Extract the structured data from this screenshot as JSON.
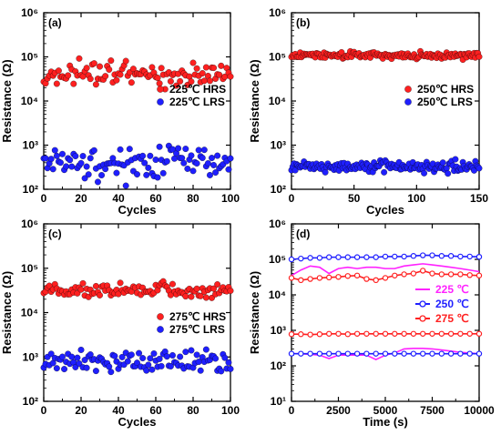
{
  "colors": {
    "red": "#ff2020",
    "blue": "#1f1fff",
    "magenta": "#ff22ff"
  },
  "chart_data": [
    {
      "panel": "(a)",
      "type": "scatter",
      "xlabel": "Cycles",
      "ylabel": "Resistance (Ω)",
      "xlim": [
        0,
        100
      ],
      "xticks": [
        0,
        20,
        40,
        60,
        80,
        100
      ],
      "ylim_log10": [
        2,
        6
      ],
      "ytick_labels": [
        "10²",
        "10³",
        "10⁴",
        "10⁵",
        "10⁶"
      ],
      "series": [
        {
          "name": "225℃ HRS",
          "color": "red",
          "center": 40000,
          "spread": 0.13,
          "n": 100
        },
        {
          "name": "225℃ LRS",
          "color": "blue",
          "center": 420,
          "spread": 0.22,
          "n": 100
        }
      ]
    },
    {
      "panel": "(b)",
      "type": "scatter",
      "xlabel": "Cycles",
      "ylabel": "Resistance (Ω)",
      "xlim": [
        0,
        150
      ],
      "xticks": [
        0,
        50,
        100,
        150
      ],
      "ylim_log10": [
        2,
        6
      ],
      "ytick_labels": [
        "10²",
        "10³",
        "10⁴",
        "10⁵",
        "10⁶"
      ],
      "series": [
        {
          "name": "250℃ HRS",
          "color": "red",
          "center": 110000,
          "spread": 0.04,
          "n": 150
        },
        {
          "name": "250℃ LRS",
          "color": "blue",
          "center": 330,
          "spread": 0.06,
          "n": 150
        }
      ]
    },
    {
      "panel": "(c)",
      "type": "scatter",
      "xlabel": "Cycles",
      "ylabel": "Resistance (Ω)",
      "xlim": [
        0,
        100
      ],
      "xticks": [
        0,
        20,
        40,
        60,
        80,
        100
      ],
      "ylim_log10": [
        2,
        6
      ],
      "ytick_labels": [
        "10²",
        "10³",
        "10⁴",
        "10⁵",
        "10⁶"
      ],
      "series": [
        {
          "name": "275℃ HRS",
          "color": "red",
          "center": 32000,
          "spread": 0.08,
          "n": 100
        },
        {
          "name": "275℃ LRS",
          "color": "blue",
          "center": 800,
          "spread": 0.12,
          "n": 100
        }
      ]
    },
    {
      "panel": "(d)",
      "type": "line",
      "xlabel": "Time (s)",
      "ylabel": "Resistance (Ω)",
      "xlim": [
        0,
        10000
      ],
      "xticks": [
        0,
        2500,
        5000,
        7500,
        10000
      ],
      "ylim_log10": [
        1,
        6
      ],
      "ytick_labels": [
        "10¹",
        "10²",
        "10³",
        "10⁴",
        "10⁵",
        "10⁶"
      ],
      "x": [
        0,
        500,
        1000,
        1500,
        2000,
        2500,
        3000,
        3500,
        4000,
        4500,
        5000,
        5500,
        6000,
        6500,
        7000,
        7500,
        8000,
        8500,
        9000,
        9500,
        10000
      ],
      "series": [
        {
          "name": "225 ℃",
          "color": "magenta",
          "marker": false,
          "hrs": [
            35000,
            50000,
            65000,
            60000,
            40000,
            55000,
            60000,
            55000,
            60000,
            60000,
            55000,
            55000,
            65000,
            70000,
            75000,
            70000,
            65000,
            60000,
            55000,
            50000,
            45000
          ],
          "lrs": [
            220,
            220,
            210,
            200,
            160,
            200,
            200,
            200,
            200,
            150,
            200,
            230,
            300,
            310,
            310,
            300,
            280,
            260,
            240,
            230,
            220
          ]
        },
        {
          "name": "250 ℃",
          "color": "blue",
          "marker": true,
          "hrs": [
            100000,
            105000,
            110000,
            110000,
            115000,
            115000,
            115000,
            115000,
            115000,
            115000,
            120000,
            120000,
            120000,
            125000,
            130000,
            130000,
            125000,
            125000,
            120000,
            120000,
            118000
          ],
          "lrs": [
            220,
            220,
            220,
            220,
            220,
            220,
            220,
            220,
            220,
            220,
            220,
            220,
            220,
            220,
            220,
            220,
            220,
            220,
            220,
            220,
            220
          ]
        },
        {
          "name": "275 ℃",
          "color": "red",
          "marker": true,
          "hrs": [
            30000,
            26000,
            28000,
            30000,
            31000,
            32000,
            34000,
            35000,
            28000,
            26000,
            30000,
            35000,
            38000,
            40000,
            48000,
            40000,
            38000,
            38000,
            38000,
            36000,
            35000
          ],
          "lrs": [
            780,
            780,
            760,
            780,
            800,
            800,
            780,
            800,
            800,
            800,
            800,
            800,
            800,
            800,
            800,
            800,
            800,
            800,
            800,
            800,
            800
          ]
        }
      ]
    }
  ]
}
